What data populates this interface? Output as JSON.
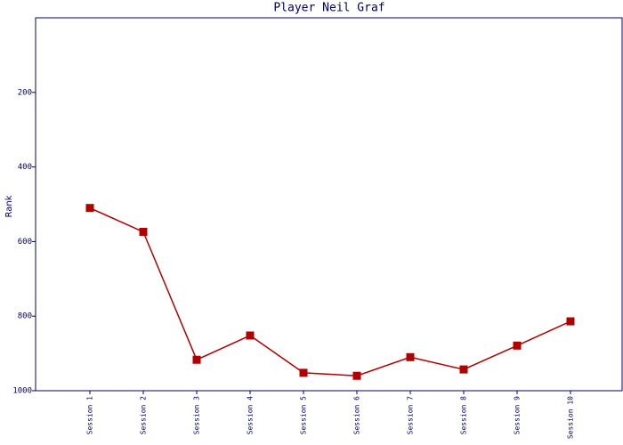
{
  "chart_data": {
    "type": "line",
    "title": "Player Neil Graf",
    "y_label": "Rank",
    "categories": [
      "Session 1",
      "Session 2",
      "Session 3",
      "Session 4",
      "Session 5",
      "Session 6",
      "Session 7",
      "Session 8",
      "Session 9",
      "Session 10"
    ],
    "series": [
      {
        "name": "Rank",
        "color": "#b00000",
        "values": [
          510,
          574,
          917,
          852,
          952,
          960,
          910,
          943,
          879,
          814
        ]
      }
    ],
    "ylim": [
      0,
      1000
    ],
    "y_inverted": true,
    "yticks": [
      200,
      400,
      600,
      800,
      1000
    ],
    "grid": false,
    "legend": false
  }
}
